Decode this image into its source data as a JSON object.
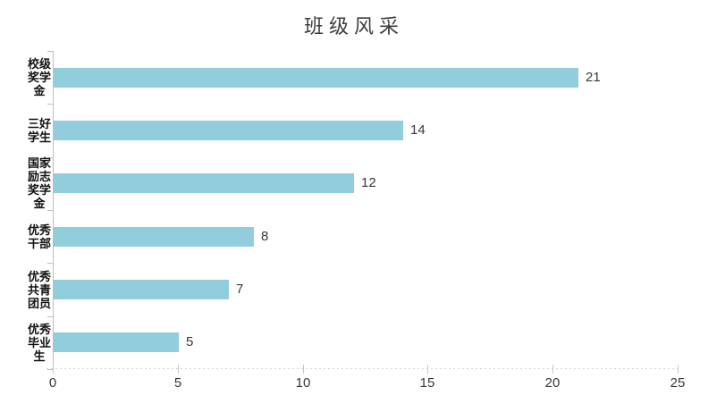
{
  "chart_data": {
    "type": "bar",
    "orientation": "horizontal",
    "title": "班级风采",
    "categories": [
      "校级奖学金",
      "三好学生",
      "国家励志奖学金",
      "优秀干部",
      "优秀共青团员",
      "优秀毕业生"
    ],
    "category_label_lines": [
      [
        "校级",
        "奖学",
        "金"
      ],
      [
        "三好",
        "学生"
      ],
      [
        "国家",
        "励志",
        "奖学",
        "金"
      ],
      [
        "优秀",
        "干部"
      ],
      [
        "优秀",
        "共青",
        "团员"
      ],
      [
        "优秀",
        "毕业",
        "生"
      ]
    ],
    "values": [
      21,
      14,
      12,
      8,
      7,
      5
    ],
    "value_labels": [
      "21",
      "14",
      "12",
      "8",
      "7",
      "5"
    ],
    "xlabel": "",
    "ylabel": "",
    "xlim": [
      0,
      25
    ],
    "xticks": [
      0,
      5,
      10,
      15,
      20,
      25
    ],
    "xtick_labels": [
      "0",
      "5",
      "10",
      "15",
      "20",
      "25"
    ],
    "grid": "off",
    "legend": "none",
    "value_label_position": "outside-end",
    "bar_color": "#92cddc",
    "axis_color": "#bfbfbf",
    "x_axis_style": "dotted",
    "text_color": "#383838",
    "title_color": "#3d3d3d",
    "background_color": "#ffffff"
  }
}
